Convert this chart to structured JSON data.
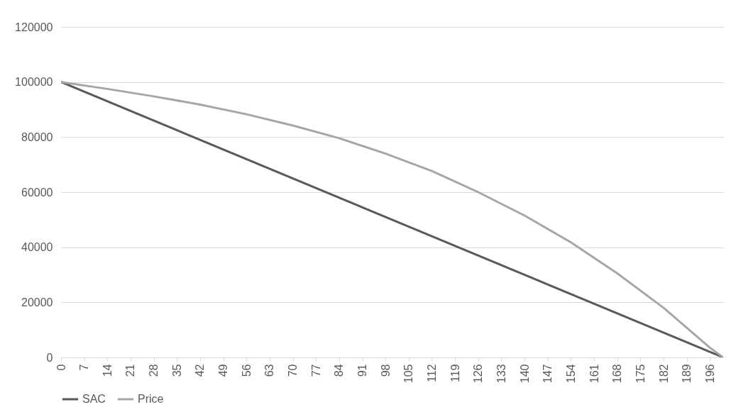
{
  "chart_data": {
    "type": "line",
    "xlim": [
      0,
      200
    ],
    "xticks": [
      0,
      7,
      14,
      21,
      28,
      35,
      42,
      49,
      56,
      63,
      70,
      77,
      84,
      91,
      98,
      105,
      112,
      119,
      126,
      133,
      140,
      147,
      154,
      161,
      168,
      175,
      182,
      189,
      196
    ],
    "ylim": [
      0,
      120000
    ],
    "yticks": [
      0,
      20000,
      40000,
      60000,
      80000,
      100000,
      120000
    ],
    "grid": "y",
    "legend": "bottom",
    "marker": "none",
    "line_style": "solid",
    "series": [
      {
        "name": "SAC",
        "color": "#595959",
        "x": [
          0,
          100,
          200
        ],
        "values": [
          100000,
          50000,
          0
        ]
      },
      {
        "name": "Price",
        "color": "#a6a6a6",
        "x": [
          0,
          14,
          28,
          42,
          56,
          70,
          84,
          98,
          112,
          126,
          140,
          154,
          168,
          182,
          196,
          200
        ],
        "values": [
          100000,
          97500,
          94800,
          91800,
          88300,
          84200,
          79600,
          74000,
          67700,
          60000,
          51500,
          41800,
          30500,
          18000,
          3500,
          0
        ]
      }
    ]
  }
}
